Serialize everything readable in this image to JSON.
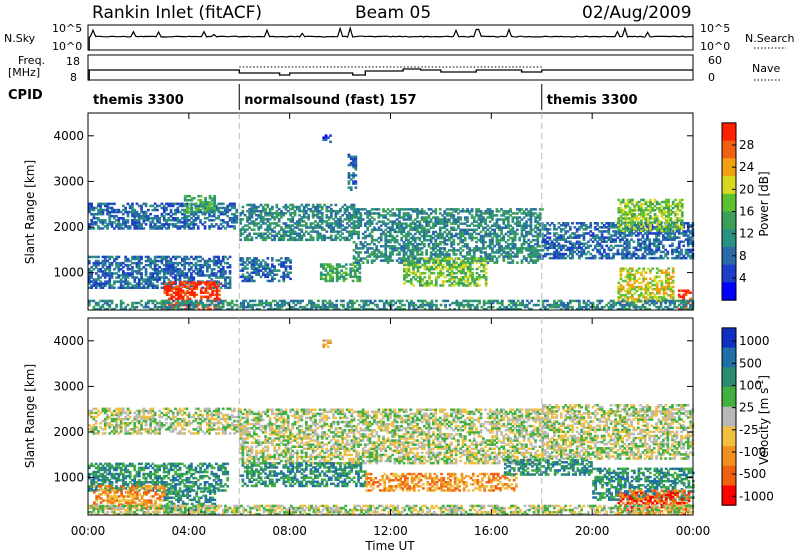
{
  "header": {
    "title": "Rankin Inlet (fitACF)",
    "beam": "Beam 05",
    "date": "02/Aug/2009"
  },
  "top_panels": {
    "nsky_label": "N.Sky",
    "nsky_ticks": [
      "10^5",
      "10^0"
    ],
    "nsearch_label": "N.Search",
    "nsearch_ticks": [
      "10^5",
      "10^0"
    ],
    "freq_label": "Freq.",
    "freq_unit": "[MHz]",
    "freq_ticks": [
      "18",
      "8"
    ],
    "nave_label": "Nave",
    "nave_ticks": [
      "60",
      "0"
    ],
    "cpid_label": "CPID",
    "cpid_segments": [
      {
        "label": "themis 3300",
        "start_hour": 0,
        "end_hour": 6
      },
      {
        "label": "normalsound (fast) 157",
        "start_hour": 6,
        "end_hour": 18
      },
      {
        "label": "themis 3300",
        "start_hour": 18,
        "end_hour": 24
      }
    ]
  },
  "chart_data": [
    {
      "type": "heatmap",
      "quantity": "power",
      "xlabel": "",
      "ylabel": "Slant Range [km]",
      "x_unit": "hour UT",
      "xlim": [
        0,
        24
      ],
      "ylim": [
        180,
        4500
      ],
      "y_ticks": [
        1000,
        2000,
        3000,
        4000
      ],
      "colorbar_label": "Power [dB]",
      "colorbar_ticks": [
        "4",
        "8",
        "12",
        "16",
        "20",
        "24",
        "28"
      ],
      "colorbar_colors": [
        "#0000ff",
        "#1c3ec8",
        "#2a6aa8",
        "#2a9080",
        "#3aa058",
        "#5cc030",
        "#d8d820",
        "#f0a010",
        "#f06010",
        "#ff2000"
      ],
      "dashed_time_markers": [
        6,
        18
      ],
      "regions": [
        {
          "t0": 0.0,
          "t1": 5.9,
          "r0": 1950,
          "r1": 2500,
          "level": 2
        },
        {
          "t0": 0.0,
          "t1": 5.6,
          "r0": 650,
          "r1": 1350,
          "level": 2
        },
        {
          "t0": 3.0,
          "t1": 5.2,
          "r0": 180,
          "r1": 800,
          "level": 9
        },
        {
          "t0": 3.8,
          "t1": 5.0,
          "r0": 2300,
          "r1": 2700,
          "level": 4
        },
        {
          "t0": 6.0,
          "t1": 10.5,
          "r0": 1700,
          "r1": 2500,
          "level": 3
        },
        {
          "t0": 6.0,
          "t1": 8.0,
          "r0": 800,
          "r1": 1300,
          "level": 2
        },
        {
          "t0": 9.2,
          "t1": 10.8,
          "r0": 800,
          "r1": 1200,
          "level": 4
        },
        {
          "t0": 10.5,
          "t1": 18.0,
          "r0": 1200,
          "r1": 2400,
          "level": 3
        },
        {
          "t0": 12.5,
          "t1": 15.8,
          "r0": 700,
          "r1": 1300,
          "level": 5
        },
        {
          "t0": 18.0,
          "t1": 24.0,
          "r0": 1300,
          "r1": 2100,
          "level": 2
        },
        {
          "t0": 21.0,
          "t1": 23.6,
          "r0": 1900,
          "r1": 2600,
          "level": 5
        },
        {
          "t0": 21.0,
          "t1": 23.2,
          "r0": 350,
          "r1": 1100,
          "level": 6
        },
        {
          "t0": 23.4,
          "t1": 23.9,
          "r0": 180,
          "r1": 600,
          "level": 9
        },
        {
          "t0": 0.0,
          "t1": 24.0,
          "r0": 180,
          "r1": 380,
          "level": 3
        },
        {
          "t0": 9.3,
          "t1": 9.6,
          "r0": 3850,
          "r1": 4000,
          "level": 1
        },
        {
          "t0": 10.3,
          "t1": 10.6,
          "r0": 2800,
          "r1": 3600,
          "level": 2
        }
      ]
    },
    {
      "type": "heatmap",
      "quantity": "velocity",
      "xlabel": "Time UT",
      "ylabel": "Slant Range [km]",
      "x_unit": "hour UT",
      "xlim": [
        0,
        24
      ],
      "ylim": [
        180,
        4500
      ],
      "y_ticks": [
        1000,
        2000,
        3000,
        4000
      ],
      "x_tick_labels": [
        "00:00",
        "04:00",
        "08:00",
        "12:00",
        "16:00",
        "20:00",
        "00:00"
      ],
      "colorbar_label": "Velocity [m s",
      "colorbar_superscript": "-1",
      "colorbar_ticks": [
        "1000",
        "500",
        "100",
        "25",
        "-25",
        "-100",
        "-500",
        "-1000"
      ],
      "colorbar_colors": [
        "#1030c0",
        "#2070a8",
        "#2c8c70",
        "#40b040",
        "#b8b8b8",
        "#f0c040",
        "#f09020",
        "#f06010",
        "#ff0000"
      ],
      "dashed_time_markers": [
        6,
        18
      ],
      "regions": [
        {
          "t0": 0.0,
          "t1": 6.0,
          "r0": 1950,
          "r1": 2500,
          "level": 4
        },
        {
          "t0": 0.0,
          "t1": 5.5,
          "r0": 700,
          "r1": 1300,
          "level": 2
        },
        {
          "t0": 0.2,
          "t1": 3.0,
          "r0": 300,
          "r1": 800,
          "level": 6
        },
        {
          "t0": 3.0,
          "t1": 5.0,
          "r0": 180,
          "r1": 700,
          "level": 2
        },
        {
          "t0": 6.0,
          "t1": 18.0,
          "r0": 1300,
          "r1": 2500,
          "level": 4
        },
        {
          "t0": 6.0,
          "t1": 11.0,
          "r0": 800,
          "r1": 1300,
          "level": 2
        },
        {
          "t0": 11.0,
          "t1": 17.0,
          "r0": 700,
          "r1": 1100,
          "level": 6
        },
        {
          "t0": 16.5,
          "t1": 20.0,
          "r0": 1050,
          "r1": 1400,
          "level": 2
        },
        {
          "t0": 18.0,
          "t1": 24.0,
          "r0": 1400,
          "r1": 2600,
          "level": 4
        },
        {
          "t0": 20.0,
          "t1": 24.0,
          "r0": 500,
          "r1": 1200,
          "level": 2
        },
        {
          "t0": 21.0,
          "t1": 23.8,
          "r0": 200,
          "r1": 700,
          "level": 7
        },
        {
          "t0": 0.0,
          "t1": 24.0,
          "r0": 180,
          "r1": 380,
          "level": 4
        },
        {
          "t0": 9.3,
          "t1": 9.6,
          "r0": 3850,
          "r1": 4000,
          "level": 5
        }
      ]
    }
  ]
}
